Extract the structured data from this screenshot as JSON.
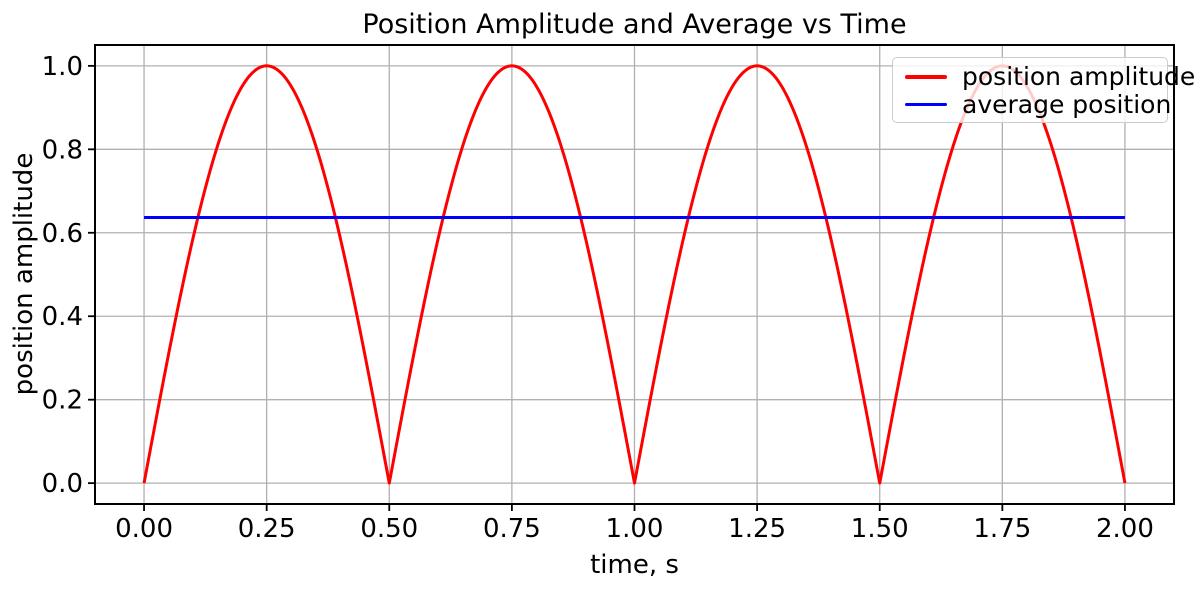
{
  "chart_data": {
    "type": "line",
    "title": "Position Amplitude and Average vs Time",
    "xlabel": "time, s",
    "ylabel": "position amplitude",
    "xlim": [
      -0.1,
      2.1
    ],
    "ylim": [
      -0.05,
      1.05
    ],
    "grid": true,
    "grid_color": "#b0b0b0",
    "background_color": "#ffffff",
    "spine_color": "#000000",
    "xticks": {
      "values": [
        0.0,
        0.25,
        0.5,
        0.75,
        1.0,
        1.25,
        1.5,
        1.75,
        2.0
      ],
      "labels": [
        "0.00",
        "0.25",
        "0.50",
        "0.75",
        "1.00",
        "1.25",
        "1.50",
        "1.75",
        "2.00"
      ]
    },
    "yticks": {
      "values": [
        0.0,
        0.2,
        0.4,
        0.6,
        0.8,
        1.0
      ],
      "labels": [
        "0.0",
        "0.2",
        "0.4",
        "0.6",
        "0.8",
        "1.0"
      ]
    },
    "legend": {
      "location": "upper right",
      "entries": [
        "position amplitude",
        "average position"
      ]
    },
    "series": [
      {
        "name": "position amplitude",
        "color": "#ff0000",
        "kind": "abs_sine",
        "formula": "y = |sin(2*pi*t)|",
        "amplitude": 1.0,
        "frequency_hz": 1.0,
        "x_start": 0.0,
        "x_end": 2.0,
        "zeros_t": [
          0.0,
          0.5,
          1.0,
          1.5,
          2.0
        ],
        "peaks_t": [
          0.25,
          0.75,
          1.25,
          1.75
        ],
        "peak_value": 1.0
      },
      {
        "name": "average position",
        "color": "#0000ff",
        "kind": "constant",
        "value": 0.6366,
        "x_start": 0.0,
        "x_end": 2.0
      }
    ]
  }
}
